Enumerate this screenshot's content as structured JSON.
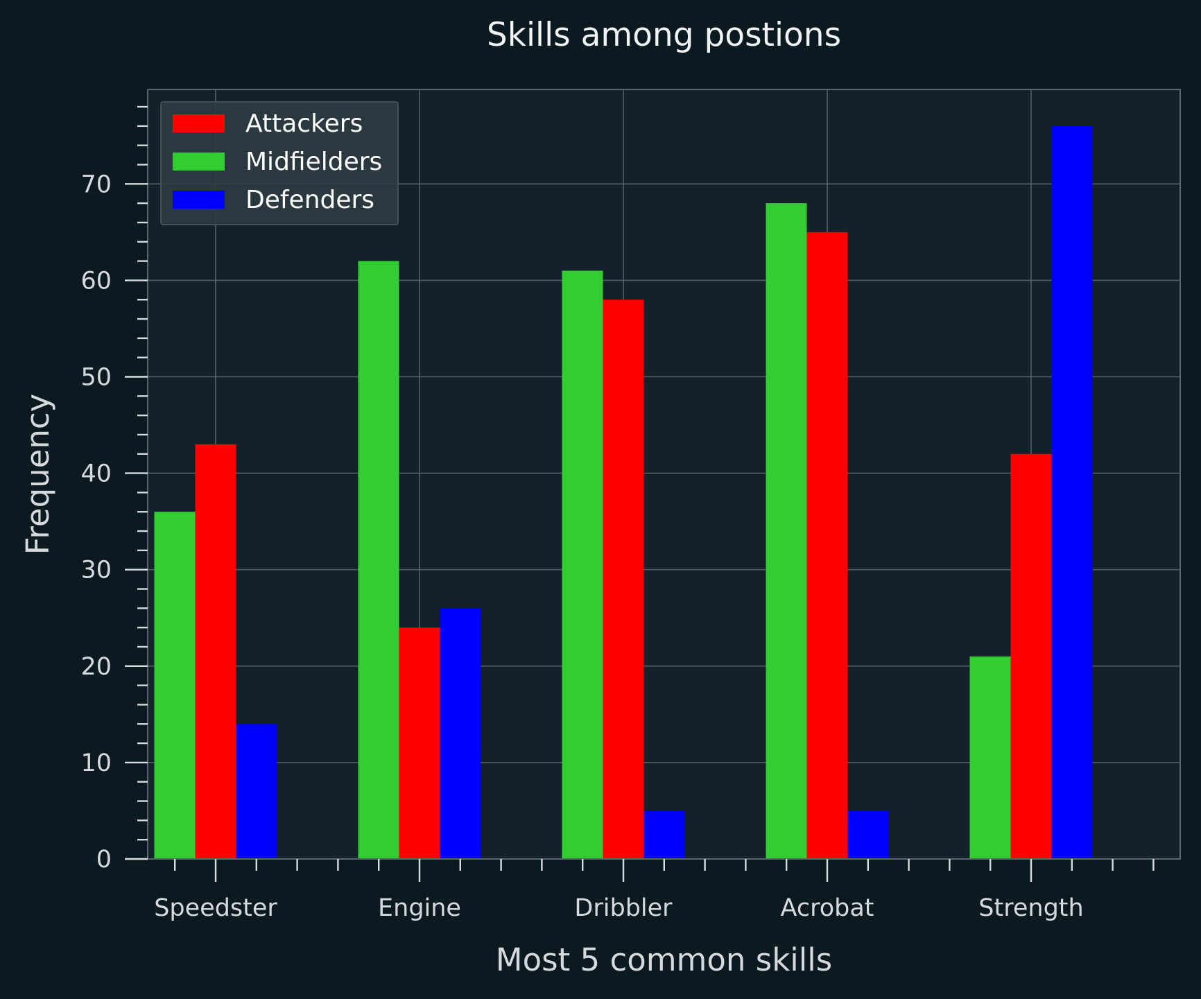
{
  "chart_data": {
    "type": "bar",
    "title": "Skills among postions",
    "xlabel": "Most 5 common skills",
    "ylabel": "Frequency",
    "categories": [
      "Speedster",
      "Engine",
      "Dribbler",
      "Acrobat",
      "Strength"
    ],
    "series": [
      {
        "name": "Midfielders",
        "color": "#32cd32",
        "values": [
          36,
          62,
          61,
          68,
          21
        ]
      },
      {
        "name": "Attackers",
        "color": "#ff0000",
        "values": [
          43,
          24,
          58,
          65,
          42
        ]
      },
      {
        "name": "Defenders",
        "color": "#0000ff",
        "values": [
          14,
          26,
          5,
          5,
          76
        ]
      }
    ],
    "legend_order": [
      "Attackers",
      "Midfielders",
      "Defenders"
    ],
    "legend_position": "top-left",
    "ylim": [
      0,
      79.8
    ],
    "yticks": [
      0,
      10,
      20,
      30,
      40,
      50,
      60,
      70
    ],
    "grid": true,
    "colors": {
      "background": "#0b1a21",
      "plot_area": "#13222a",
      "legend_bg": "#2d3c43"
    }
  }
}
